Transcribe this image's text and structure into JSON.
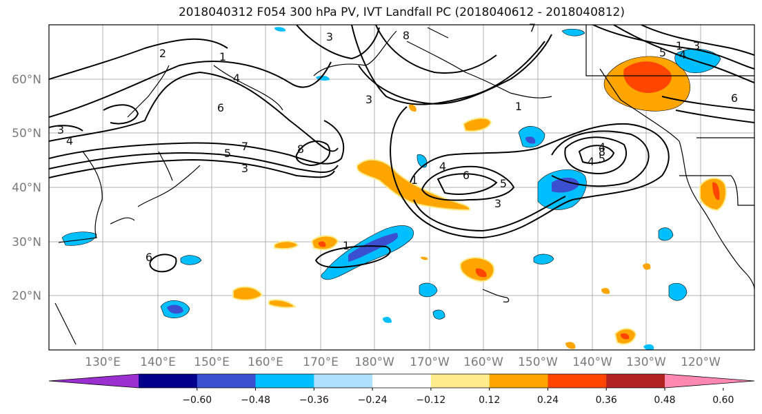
{
  "title": "2018040312 F054 300 hPa PV, IVT Landfall PC (2018040612 - 2018040812)",
  "lat_labels": [
    "60°N",
    "50°N",
    "40°N",
    "30°N",
    "20°N"
  ],
  "lon_labels": [
    "130°E",
    "140°E",
    "150°E",
    "160°E",
    "170°E",
    "180°W",
    "170°W",
    "160°W",
    "150°W",
    "140°W",
    "130°W",
    "120°W"
  ],
  "colorbar": {
    "ticks": [
      "−0.60",
      "−0.48",
      "−0.36",
      "−0.24",
      "−0.12",
      "0.12",
      "0.24",
      "0.36",
      "0.48",
      "0.60"
    ],
    "colors": [
      "#9b30d0",
      "#00008b",
      "#3a50d0",
      "#00bfff",
      "#b0e2ff",
      "#ffffff",
      "#ffeb8c",
      "#ffa500",
      "#ff4500",
      "#b22222",
      "#ff88b0"
    ]
  },
  "contour_labels": [
    "2",
    "1",
    "4",
    "6",
    "7",
    "5",
    "3",
    "8",
    "3",
    "4",
    "1",
    "8",
    "3",
    "1",
    "7",
    "5",
    "4",
    "3",
    "6",
    "5",
    "4",
    "8",
    "5",
    "4",
    "3",
    "1",
    "6",
    "1",
    "6",
    "4",
    "3"
  ],
  "colors": {
    "positive_low": "#ffeb8c",
    "positive_mid": "#ffa500",
    "positive_high": "#ff4500",
    "negative_low": "#b0e2ff",
    "negative_mid": "#00bfff",
    "negative_high": "#3a50d0",
    "grid": "#b0b0b0",
    "coast": "#000000"
  }
}
